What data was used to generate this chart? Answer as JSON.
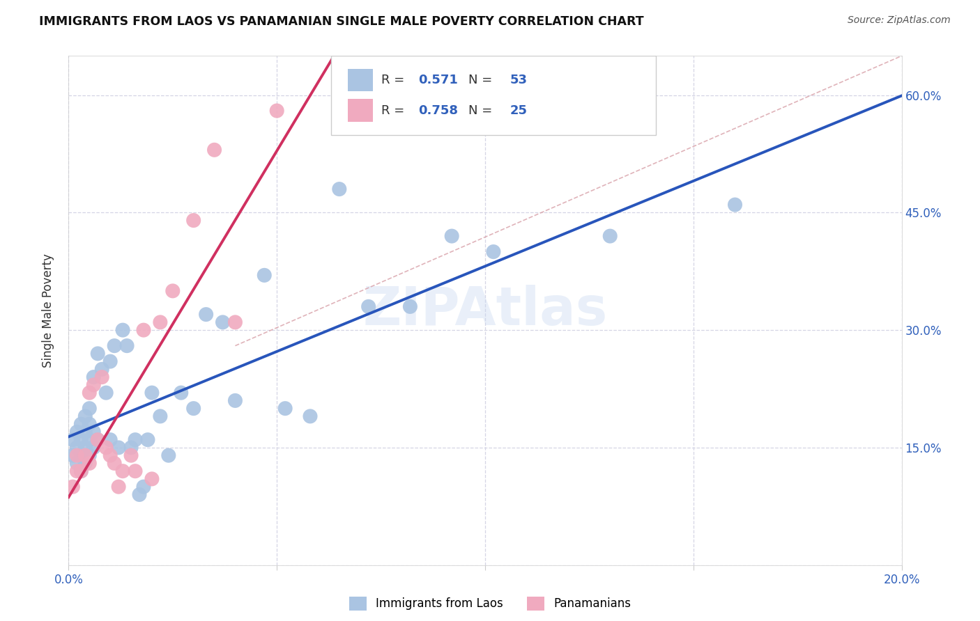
{
  "title": "IMMIGRANTS FROM LAOS VS PANAMANIAN SINGLE MALE POVERTY CORRELATION CHART",
  "source": "Source: ZipAtlas.com",
  "ylabel_label": "Single Male Poverty",
  "xlim": [
    0.0,
    0.2
  ],
  "ylim": [
    0.0,
    0.65
  ],
  "xticks": [
    0.0,
    0.05,
    0.1,
    0.15,
    0.2
  ],
  "yticks": [
    0.0,
    0.15,
    0.3,
    0.45,
    0.6
  ],
  "ytick_labels_right": [
    "",
    "15.0%",
    "30.0%",
    "45.0%",
    "60.0%"
  ],
  "xtick_labels": [
    "0.0%",
    "",
    "",
    "",
    "20.0%"
  ],
  "blue_R": "0.571",
  "blue_N": "53",
  "pink_R": "0.758",
  "pink_N": "25",
  "blue_color": "#aac4e2",
  "pink_color": "#f0aabf",
  "blue_line_color": "#2855bb",
  "pink_line_color": "#d03060",
  "diagonal_color": "#d8a0a8",
  "background_color": "#ffffff",
  "grid_color": "#d5d5e5",
  "watermark": "ZIPAtlas",
  "legend_label_blue": "Immigrants from Laos",
  "legend_label_pink": "Panamanians",
  "blue_scatter_x": [
    0.001,
    0.001,
    0.002,
    0.002,
    0.002,
    0.003,
    0.003,
    0.003,
    0.003,
    0.004,
    0.004,
    0.004,
    0.004,
    0.005,
    0.005,
    0.005,
    0.005,
    0.006,
    0.006,
    0.006,
    0.007,
    0.007,
    0.008,
    0.009,
    0.01,
    0.01,
    0.011,
    0.012,
    0.013,
    0.014,
    0.015,
    0.016,
    0.017,
    0.018,
    0.019,
    0.02,
    0.022,
    0.024,
    0.027,
    0.03,
    0.033,
    0.037,
    0.04,
    0.047,
    0.052,
    0.058,
    0.065,
    0.072,
    0.082,
    0.092,
    0.102,
    0.13,
    0.16
  ],
  "blue_scatter_y": [
    0.14,
    0.16,
    0.13,
    0.15,
    0.17,
    0.12,
    0.14,
    0.16,
    0.18,
    0.13,
    0.15,
    0.17,
    0.19,
    0.14,
    0.16,
    0.18,
    0.2,
    0.15,
    0.17,
    0.24,
    0.16,
    0.27,
    0.25,
    0.22,
    0.26,
    0.16,
    0.28,
    0.15,
    0.3,
    0.28,
    0.15,
    0.16,
    0.09,
    0.1,
    0.16,
    0.22,
    0.19,
    0.14,
    0.22,
    0.2,
    0.32,
    0.31,
    0.21,
    0.37,
    0.2,
    0.19,
    0.48,
    0.33,
    0.33,
    0.42,
    0.4,
    0.42,
    0.46
  ],
  "pink_scatter_x": [
    0.001,
    0.002,
    0.002,
    0.003,
    0.004,
    0.005,
    0.005,
    0.006,
    0.007,
    0.008,
    0.009,
    0.01,
    0.011,
    0.012,
    0.013,
    0.015,
    0.016,
    0.018,
    0.02,
    0.022,
    0.025,
    0.03,
    0.035,
    0.04,
    0.05
  ],
  "pink_scatter_y": [
    0.1,
    0.12,
    0.14,
    0.12,
    0.14,
    0.22,
    0.13,
    0.23,
    0.16,
    0.24,
    0.15,
    0.14,
    0.13,
    0.1,
    0.12,
    0.14,
    0.12,
    0.3,
    0.11,
    0.31,
    0.35,
    0.44,
    0.53,
    0.31,
    0.58
  ]
}
